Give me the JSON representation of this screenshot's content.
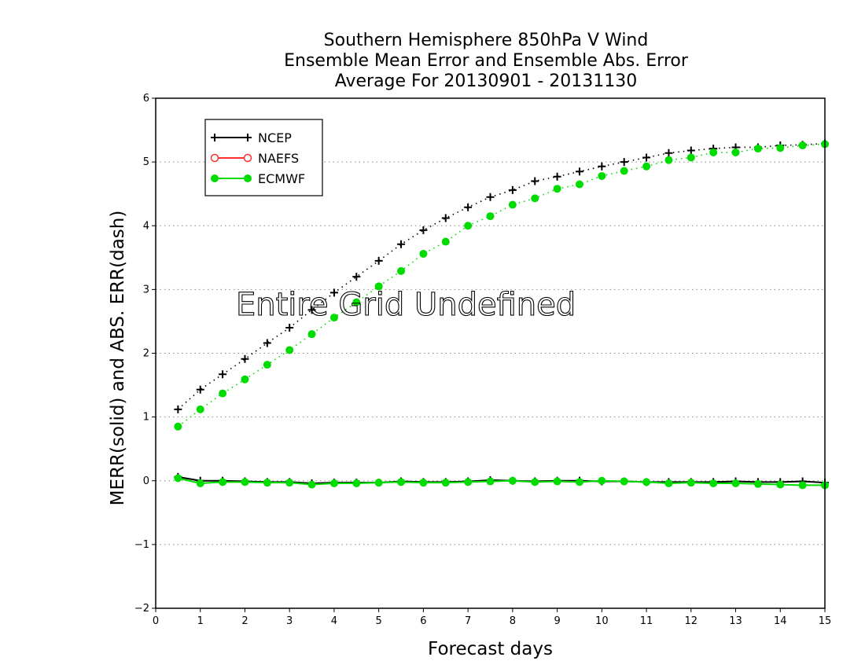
{
  "chart_data": {
    "type": "line",
    "title_lines": [
      "Southern Hemisphere 850hPa V Wind",
      "Ensemble Mean Error and Ensemble Abs. Error",
      "Average For 20130901 - 20131130"
    ],
    "xlabel": "Forecast days",
    "ylabel": "MERR(solid) and ABS. ERR(dash)",
    "xlim": [
      0,
      15
    ],
    "ylim": [
      -2,
      6
    ],
    "xticks": [
      "0",
      "1",
      "2",
      "3",
      "4",
      "5",
      "6",
      "7",
      "8",
      "9",
      "10",
      "11",
      "12",
      "13",
      "14",
      "15"
    ],
    "yticks": [
      "−2",
      "−1",
      "0",
      "1",
      "2",
      "3",
      "4",
      "5",
      "6"
    ],
    "grid": "horizontal-dotted",
    "legend_placement": "top-left",
    "annotation": "Entire Grid Undefined",
    "x": [
      0.5,
      1,
      1.5,
      2,
      2.5,
      3,
      3.5,
      4,
      4.5,
      5,
      5.5,
      6,
      6.5,
      7,
      7.5,
      8,
      8.5,
      9,
      9.5,
      10,
      10.5,
      11,
      11.5,
      12,
      12.5,
      13,
      13.5,
      14,
      14.5,
      15
    ],
    "series": [
      {
        "name": "NCEP",
        "color": "#000000",
        "marker": "plus",
        "mean_error": [
          0.06,
          0.0,
          0.0,
          -0.01,
          -0.02,
          -0.02,
          -0.04,
          -0.03,
          -0.03,
          -0.03,
          -0.01,
          -0.02,
          -0.02,
          -0.01,
          0.01,
          0.0,
          -0.01,
          0.0,
          0.0,
          -0.01,
          -0.01,
          -0.02,
          -0.02,
          -0.02,
          -0.02,
          -0.01,
          -0.02,
          -0.02,
          -0.01,
          -0.03
        ],
        "abs_error": [
          1.12,
          1.43,
          1.67,
          1.91,
          2.16,
          2.4,
          2.68,
          2.95,
          3.2,
          3.45,
          3.71,
          3.93,
          4.12,
          4.29,
          4.45,
          4.56,
          4.7,
          4.77,
          4.85,
          4.93,
          5.0,
          5.07,
          5.14,
          5.18,
          5.21,
          5.23,
          5.23,
          5.26,
          5.27,
          5.29
        ]
      },
      {
        "name": "NAEFS",
        "color": "#ff3030",
        "marker": "open-circle",
        "mean_error": [],
        "abs_error": []
      },
      {
        "name": "ECMWF",
        "color": "#00dc00",
        "marker": "filled-circle",
        "mean_error": [
          0.04,
          -0.04,
          -0.02,
          -0.02,
          -0.03,
          -0.03,
          -0.06,
          -0.04,
          -0.04,
          -0.03,
          -0.02,
          -0.03,
          -0.03,
          -0.02,
          -0.01,
          0.0,
          -0.02,
          -0.01,
          -0.02,
          0.0,
          -0.01,
          -0.02,
          -0.04,
          -0.03,
          -0.04,
          -0.04,
          -0.05,
          -0.06,
          -0.07,
          -0.07
        ],
        "abs_error": [
          0.85,
          1.12,
          1.37,
          1.59,
          1.82,
          2.05,
          2.3,
          2.56,
          2.8,
          3.05,
          3.29,
          3.56,
          3.75,
          4.0,
          4.15,
          4.33,
          4.43,
          4.58,
          4.65,
          4.78,
          4.86,
          4.93,
          5.03,
          5.07,
          5.15,
          5.15,
          5.21,
          5.22,
          5.26,
          5.28
        ]
      }
    ]
  }
}
